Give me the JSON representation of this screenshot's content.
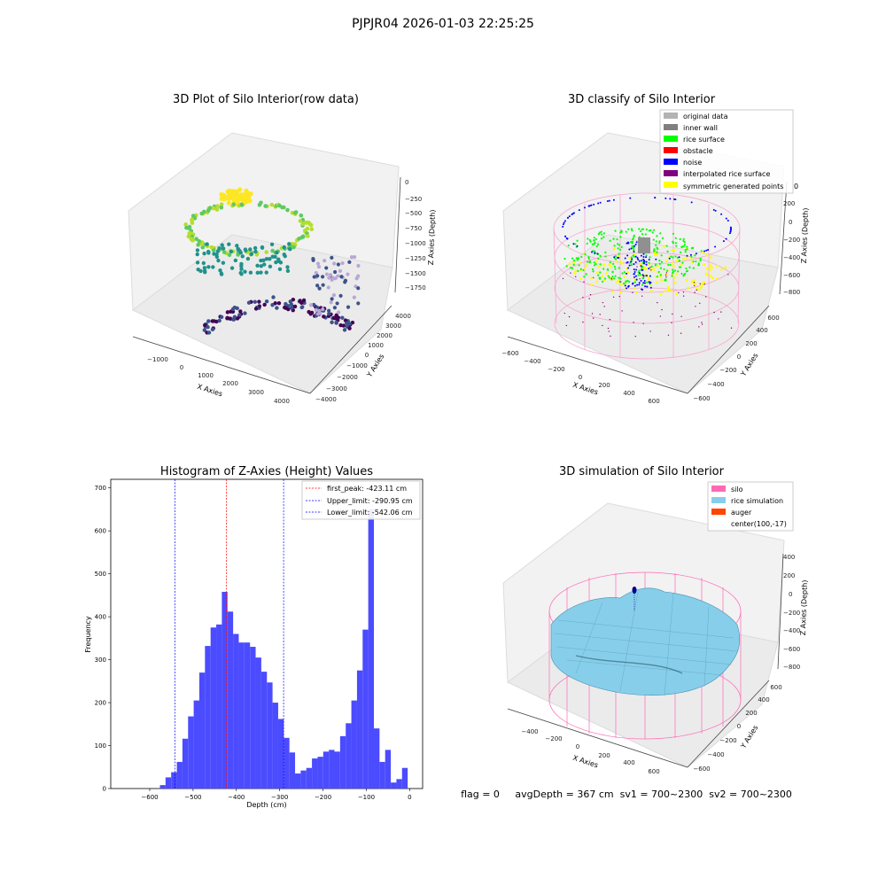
{
  "figure_title": "PJPJR04 2026-01-03 22:25:25",
  "status_line": "flag = 0     avgDepth = 367 cm  sv1 = 700~2300  sv2 = 700~2300",
  "chart_data": [
    {
      "type": "scatter",
      "title": "3D Plot of Silo Interior(row data)",
      "xlabel": "X Axies",
      "ylabel": "Y Axies",
      "zlabel": "Z Axies (Depth)",
      "x_ticks": [
        "−1000",
        "0",
        "1000",
        "2000",
        "3000",
        "4000"
      ],
      "y_ticks": [
        "−4000",
        "−3000",
        "−2000",
        "−1000",
        "0",
        "1000",
        "2000",
        "3000",
        "4000"
      ],
      "z_ticks": [
        "0",
        "−250",
        "−500",
        "−750",
        "−1000",
        "−1250",
        "−1500",
        "−1750"
      ],
      "colormap": "viridis"
    },
    {
      "type": "scatter",
      "title": "3D classify of Silo Interior",
      "xlabel": "X Axies",
      "ylabel": "Y Axies",
      "zlabel": "Z Axies (Depth)",
      "x_ticks": [
        "−600",
        "−400",
        "−200",
        "0",
        "200",
        "400",
        "600"
      ],
      "y_ticks": [
        "−600",
        "−400",
        "−200",
        "0",
        "200",
        "400",
        "600"
      ],
      "z_ticks": [
        "200",
        "0",
        "−200",
        "−400",
        "−600",
        "−800"
      ],
      "legend": [
        {
          "label": "original data",
          "color": "#b3b3b3"
        },
        {
          "label": "inner wall",
          "color": "#808080"
        },
        {
          "label": "rice surface",
          "color": "#00ff00"
        },
        {
          "label": "obstacle",
          "color": "#ff0000"
        },
        {
          "label": "noise",
          "color": "#0000ff"
        },
        {
          "label": "interpolated rice surface",
          "color": "#800080"
        },
        {
          "label": "symmetric generated points",
          "color": "#ffff00"
        }
      ],
      "legend_suffix": "0"
    },
    {
      "type": "bar",
      "title": "Histogram of Z-Axies (Height) Values",
      "xlabel": "Depth (cm)",
      "ylabel": "Frequency",
      "xlim": [
        -690,
        30
      ],
      "ylim": [
        0,
        720
      ],
      "x_ticks": [
        -600,
        -500,
        -400,
        -300,
        -200,
        -100,
        0
      ],
      "x_tick_labels": [
        "−600",
        "−500",
        "−400",
        "−300",
        "−200",
        "−100",
        "0"
      ],
      "y_ticks": [
        0,
        100,
        200,
        300,
        400,
        500,
        600,
        700
      ],
      "bin_width": 13,
      "bins": [
        {
          "x": -570,
          "y": 8
        },
        {
          "x": -557,
          "y": 26
        },
        {
          "x": -544,
          "y": 38
        },
        {
          "x": -531,
          "y": 62
        },
        {
          "x": -518,
          "y": 116
        },
        {
          "x": -505,
          "y": 168
        },
        {
          "x": -492,
          "y": 205
        },
        {
          "x": -479,
          "y": 270
        },
        {
          "x": -466,
          "y": 332
        },
        {
          "x": -453,
          "y": 375
        },
        {
          "x": -440,
          "y": 382
        },
        {
          "x": -427,
          "y": 458
        },
        {
          "x": -414,
          "y": 412
        },
        {
          "x": -401,
          "y": 360
        },
        {
          "x": -388,
          "y": 340
        },
        {
          "x": -375,
          "y": 340
        },
        {
          "x": -362,
          "y": 330
        },
        {
          "x": -349,
          "y": 305
        },
        {
          "x": -336,
          "y": 272
        },
        {
          "x": -323,
          "y": 247
        },
        {
          "x": -310,
          "y": 200
        },
        {
          "x": -297,
          "y": 162
        },
        {
          "x": -284,
          "y": 118
        },
        {
          "x": -271,
          "y": 84
        },
        {
          "x": -258,
          "y": 35
        },
        {
          "x": -245,
          "y": 42
        },
        {
          "x": -232,
          "y": 48
        },
        {
          "x": -219,
          "y": 70
        },
        {
          "x": -206,
          "y": 74
        },
        {
          "x": -193,
          "y": 86
        },
        {
          "x": -180,
          "y": 90
        },
        {
          "x": -167,
          "y": 86
        },
        {
          "x": -154,
          "y": 122
        },
        {
          "x": -141,
          "y": 152
        },
        {
          "x": -128,
          "y": 205
        },
        {
          "x": -115,
          "y": 275
        },
        {
          "x": -102,
          "y": 370
        },
        {
          "x": -89,
          "y": 650
        },
        {
          "x": -76,
          "y": 140
        },
        {
          "x": -63,
          "y": 62
        },
        {
          "x": -50,
          "y": 90
        },
        {
          "x": -37,
          "y": 14
        },
        {
          "x": -24,
          "y": 22
        },
        {
          "x": -11,
          "y": 48
        }
      ],
      "lines": [
        {
          "value": -423.11,
          "color": "#ff0000",
          "label": "first_peak: -423.11 cm"
        },
        {
          "value": -290.95,
          "color": "#0000ff",
          "label": "Upper_limit: -290.95 cm"
        },
        {
          "value": -542.06,
          "color": "#0000ff",
          "label": "Lower_limit: -542.06 cm"
        }
      ],
      "bar_color": "#4b4bff",
      "legend_position": "upper-right"
    },
    {
      "type": "area",
      "title": "3D simulation of Silo Interior",
      "xlabel": "X Axies",
      "ylabel": "Y Axies",
      "zlabel": "Z Axies (Depth)",
      "x_ticks": [
        "−400",
        "−200",
        "0",
        "200",
        "400",
        "600"
      ],
      "y_ticks": [
        "−600",
        "−400",
        "−200",
        "0",
        "200",
        "400",
        "600"
      ],
      "z_ticks": [
        "400",
        "200",
        "0",
        "−200",
        "−400",
        "−600",
        "−800"
      ],
      "legend": [
        {
          "label": "silo",
          "color": "#ff69b4"
        },
        {
          "label": "rice simulation",
          "color": "#87ceeb"
        },
        {
          "label": "auger",
          "color": "#ff4500"
        },
        {
          "label": "center(100,-17)",
          "color": ""
        }
      ]
    }
  ]
}
